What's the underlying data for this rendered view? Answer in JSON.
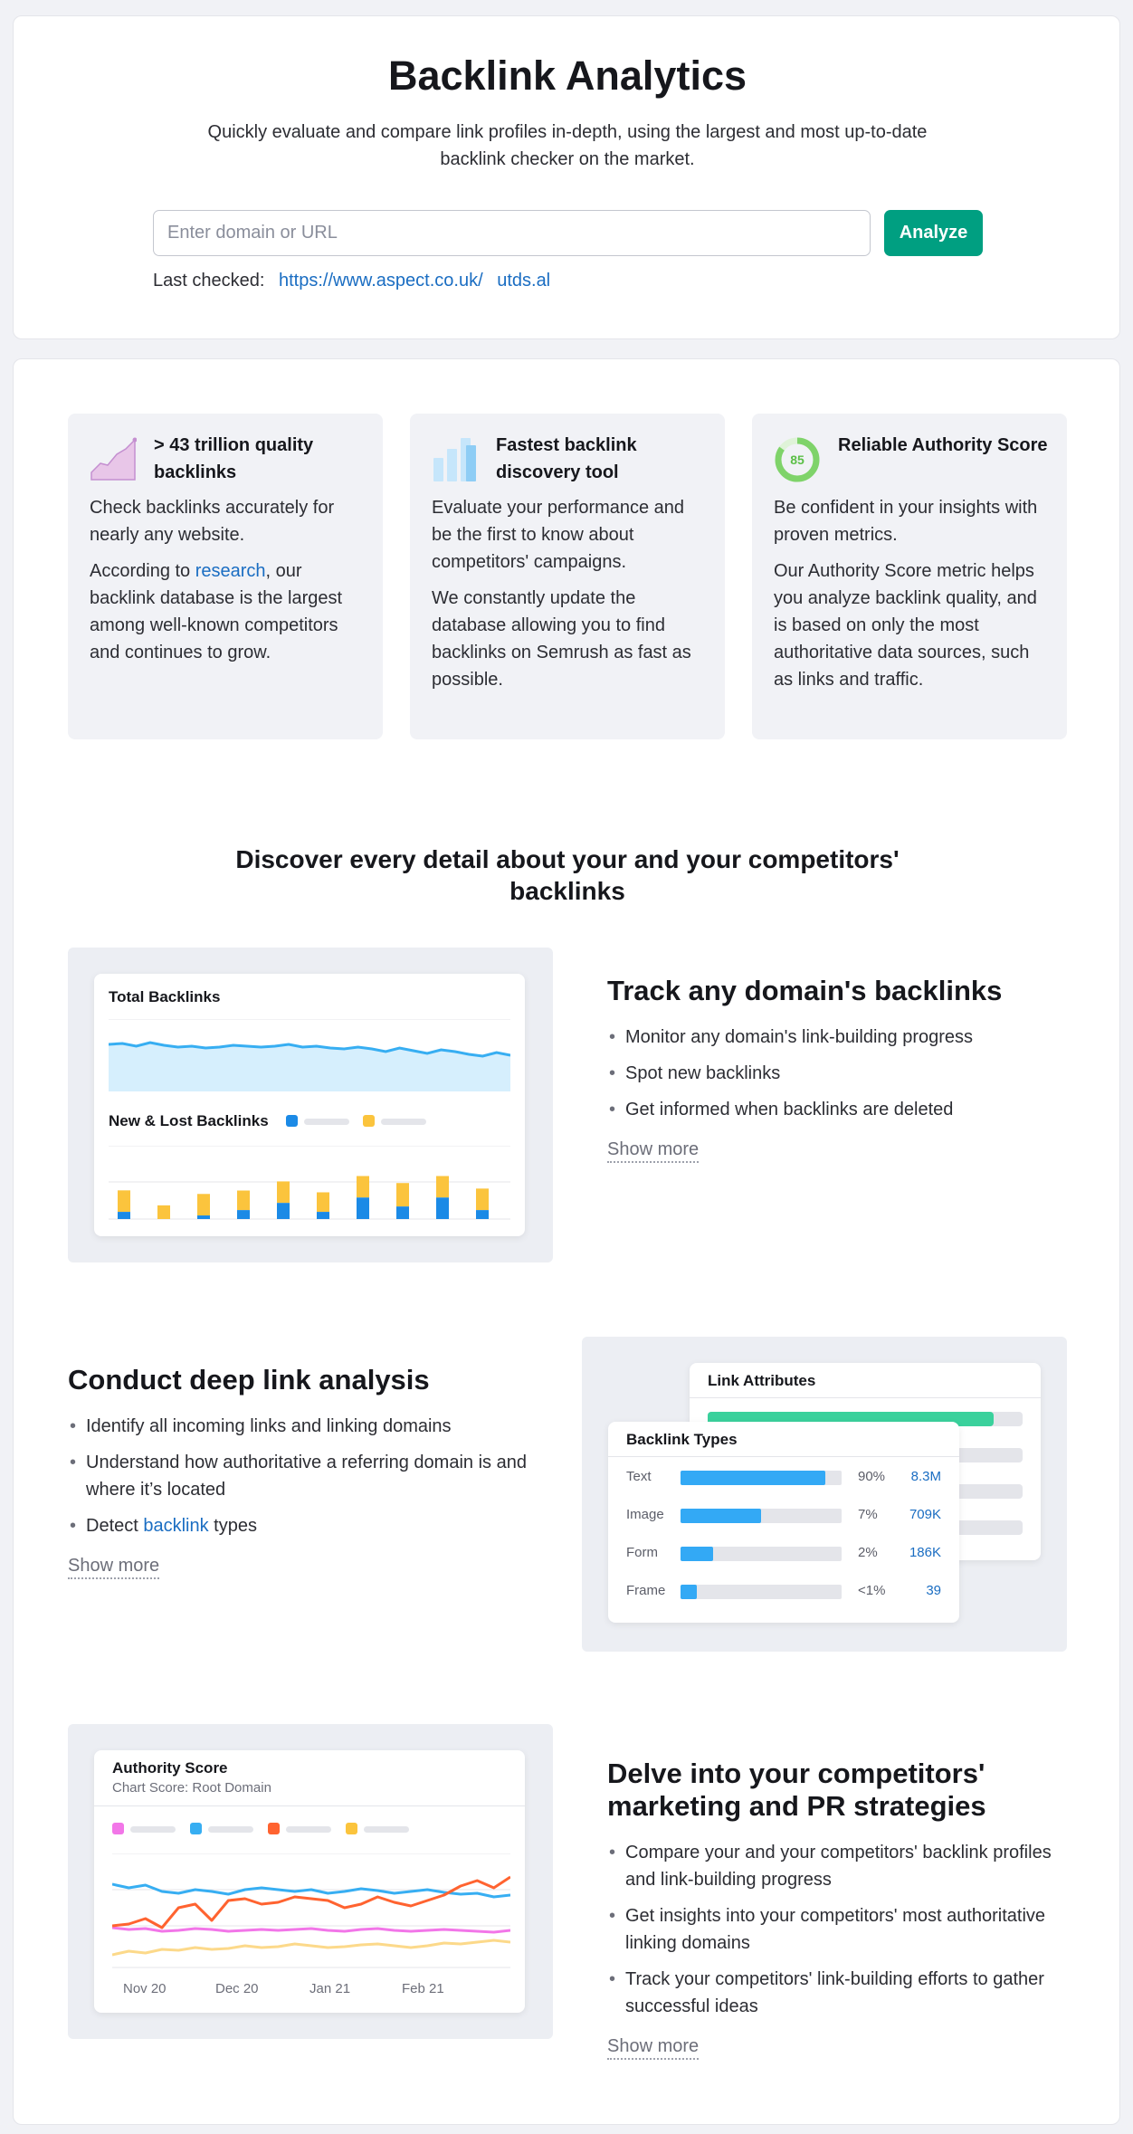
{
  "hero": {
    "title": "Backlink Analytics",
    "subtitle": "Quickly evaluate and compare link profiles in-depth, using the largest and most up-to-date backlink checker on the market.",
    "search_placeholder": "Enter domain or URL",
    "analyze_label": "Analyze",
    "last_checked_label": "Last checked:",
    "last_checked_links": [
      "https://www.aspect.co.uk/",
      "utds.al"
    ]
  },
  "features": [
    {
      "icon": "area-chart-icon",
      "heading": "> 43 trillion quality backlinks",
      "p1": "Check backlinks accurately for nearly any website.",
      "p2_before": "According to ",
      "p2_link": "research",
      "p2_after": ", our backlink database is the largest among well-known competitors and continues to grow."
    },
    {
      "icon": "bar-chart-icon",
      "heading": "Fastest backlink discovery tool",
      "p1": "Evaluate your performance and be the first to know about competitors' campaigns.",
      "p2": "We constantly update the database allowing you to find backlinks on Semrush as fast as possible."
    },
    {
      "icon": "authority-score-icon",
      "score": "85",
      "heading": "Reliable Authority Score",
      "p1": "Be confident in your insights with proven metrics.",
      "p2": "Our Authority Score metric helps you analyze backlink quality, and is based on only the most authoritative data sources, such as links and traffic."
    }
  ],
  "discover_title": "Discover every detail about your and your competitors' backlinks",
  "track": {
    "panel_title_1": "Total Backlinks",
    "panel_title_2": "New & Lost Backlinks",
    "heading": "Track any domain's backlinks",
    "bullets": [
      "Monitor any domain's link-building progress",
      "Spot new backlinks",
      "Get informed when backlinks are deleted"
    ],
    "show_more": "Show more",
    "bars": [
      {
        "new": 0.2,
        "lost": 0.55
      },
      {
        "new": 0.0,
        "lost": 0.35
      },
      {
        "new": 0.1,
        "lost": 0.55
      },
      {
        "new": 0.25,
        "lost": 0.5
      },
      {
        "new": 0.45,
        "lost": 0.55
      },
      {
        "new": 0.2,
        "lost": 0.5
      },
      {
        "new": 0.6,
        "lost": 0.55
      },
      {
        "new": 0.35,
        "lost": 0.6
      },
      {
        "new": 0.6,
        "lost": 0.55
      },
      {
        "new": 0.25,
        "lost": 0.55
      }
    ],
    "colors": {
      "new": "#1b8ae6",
      "lost": "#fbc43d",
      "line": "#37aef2",
      "fill": "#d6effd"
    }
  },
  "deep": {
    "heading": "Conduct deep link analysis",
    "bullet1": "Identify all incoming links and linking domains",
    "bullet2": "Understand how authoritative a referring domain is and where it’s located",
    "bullet3_before": "Detect ",
    "bullet3_link": "backlink",
    "bullet3_after": " types",
    "show_more": "Show more",
    "back_panel_title": "Link Attributes",
    "front_panel_title": "Backlink Types",
    "rows": [
      {
        "label": "Text",
        "fill": 0.9,
        "pct": "90%",
        "count": "8.3M"
      },
      {
        "label": "Image",
        "fill": 0.5,
        "pct": "7%",
        "count": "709K"
      },
      {
        "label": "Form",
        "fill": 0.2,
        "pct": "2%",
        "count": "186K"
      },
      {
        "label": "Frame",
        "fill": 0.1,
        "pct": "<1%",
        "count": "39"
      }
    ]
  },
  "delve": {
    "panel_title": "Authority Score",
    "panel_subtitle": "Chart Score: Root Domain",
    "x_labels": [
      "Nov 20",
      "Dec 20",
      "Jan 21",
      "Feb 21"
    ],
    "heading": "Delve into your competitors' marketing and PR strategies",
    "bullets": [
      "Compare your and your competitors' backlink profiles and link-building progress",
      "Get insights into your competitors' most authoritative linking domains",
      "Track your competitors' link-building efforts to gather successful ideas"
    ],
    "show_more": "Show more",
    "series_colors": [
      "#f276e8",
      "#37aef2",
      "#ff6330",
      "#fbc43d"
    ]
  }
}
